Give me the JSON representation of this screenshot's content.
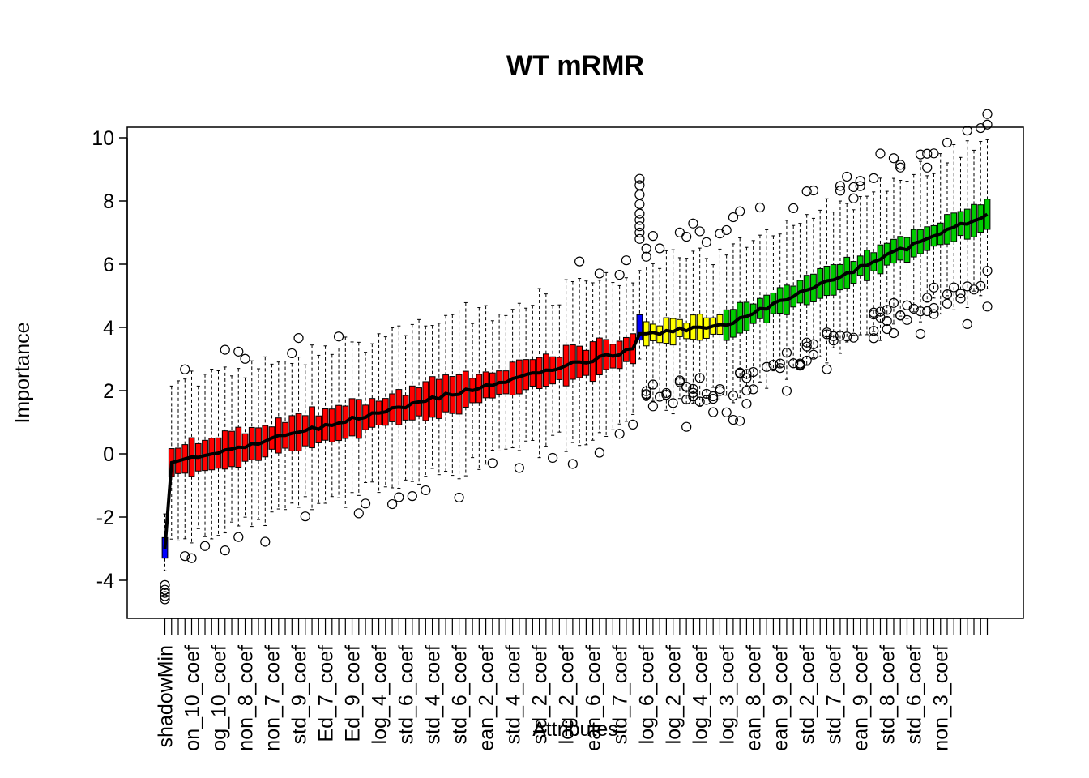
{
  "chart_data": {
    "type": "boxplot",
    "title": "WT mRMR",
    "xlabel": "Attributes",
    "ylabel": "Importance",
    "ylim": [
      -5.2,
      10.3
    ],
    "yticks": [
      -4,
      -2,
      0,
      2,
      4,
      6,
      8,
      10
    ],
    "num_boxes": 124,
    "colors": {
      "shadow": "#0000ff",
      "rejected": "#ff0000",
      "tentative": "#ffff00",
      "confirmed": "#00cd00",
      "outline": "#000000"
    },
    "visible_tick_labels": [
      {
        "box": 1,
        "label": "shadowMin"
      },
      {
        "box": 5,
        "label": "on_10_coef"
      },
      {
        "box": 9,
        "label": "og_10_coef"
      },
      {
        "box": 13,
        "label": "non_8_coef"
      },
      {
        "box": 17,
        "label": "non_7_coef"
      },
      {
        "box": 21,
        "label": "std_9_coef"
      },
      {
        "box": 25,
        "label": "Ed_7_coef"
      },
      {
        "box": 29,
        "label": "Ed_9_coef"
      },
      {
        "box": 33,
        "label": "log_4_coef"
      },
      {
        "box": 37,
        "label": "std_6_coef"
      },
      {
        "box": 41,
        "label": "std_4_coef"
      },
      {
        "box": 45,
        "label": "std_6_coef"
      },
      {
        "box": 49,
        "label": "ean_2_coef"
      },
      {
        "box": 53,
        "label": "std_4_coef"
      },
      {
        "box": 57,
        "label": "std_2_coef"
      },
      {
        "box": 61,
        "label": "log_2_coef"
      },
      {
        "box": 65,
        "label": "ean_6_coef"
      },
      {
        "box": 69,
        "label": "std_7_coef"
      },
      {
        "box": 73,
        "label": "log_6_coef"
      },
      {
        "box": 77,
        "label": "log_2_coef"
      },
      {
        "box": 81,
        "label": "log_4_coef"
      },
      {
        "box": 85,
        "label": "log_3_coef"
      },
      {
        "box": 89,
        "label": "ean_8_coef"
      },
      {
        "box": 93,
        "label": "ean_9_coef"
      },
      {
        "box": 97,
        "label": "std_2_coef"
      },
      {
        "box": 101,
        "label": "std_7_coef"
      },
      {
        "box": 105,
        "label": "ean_9_coef"
      },
      {
        "box": 109,
        "label": "std_8_coef"
      },
      {
        "box": 113,
        "label": "std_6_coef"
      },
      {
        "box": 117,
        "label": "non_3_coef"
      }
    ],
    "segments": [
      {
        "status": "shadow",
        "from": 1,
        "to": 1,
        "median": -3.0,
        "q1": -3.3,
        "q3": -2.65,
        "whisker_low": -3.7,
        "whisker_high": -1.9
      },
      {
        "status": "rejected",
        "from": 2,
        "to": 71,
        "median_start": -0.3,
        "median_end": 3.3,
        "iqr_half": 0.5
      },
      {
        "status": "shadow",
        "from": 72,
        "to": 72,
        "median": 3.8,
        "q1": 3.6,
        "q3": 4.4,
        "whisker_low": 3.0,
        "whisker_high": 5.8
      },
      {
        "status": "tentative",
        "from": 73,
        "to": 84,
        "median_start": 3.75,
        "median_end": 4.1,
        "iqr_half": 0.35
      },
      {
        "status": "confirmed",
        "from": 85,
        "to": 124,
        "median_start": 4.1,
        "median_end": 7.6,
        "iqr_half": 0.4
      }
    ]
  }
}
